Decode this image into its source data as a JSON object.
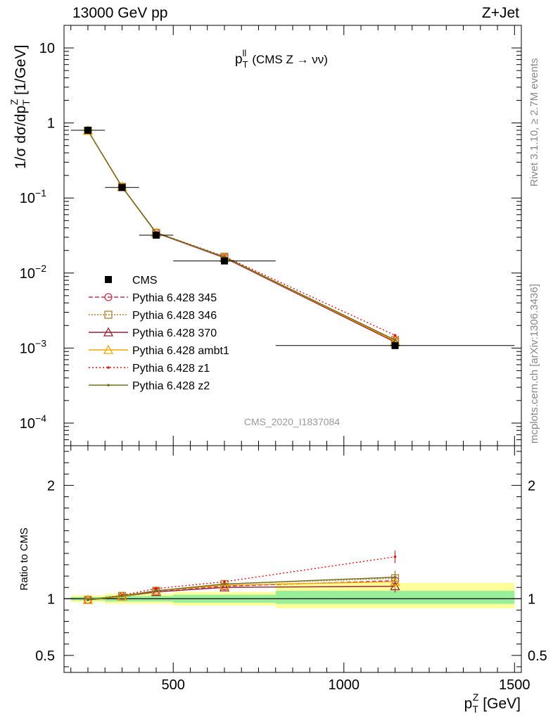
{
  "header": {
    "left": "13000 GeV pp",
    "right": "Z+Jet"
  },
  "side_labels": {
    "top": "Rivet 3.1.10, ≥ 2.7M events",
    "bottom": "mcplots.cern.ch [arXiv:1306.3436]"
  },
  "chart_data": [
    {
      "type": "line",
      "title": "p_T^ll (CMS Z → νν)",
      "title_parts": {
        "main": "p",
        "sub": "T",
        "sup": "ll",
        "rest": "(CMS Z → νν)"
      },
      "ylabel": "1/σ dσ/dp_T^Z [1/GeV]",
      "ylabel_parts": {
        "a": "1/σ dσ/dp",
        "sub": "T",
        "sup": "Z",
        "b": " [1/GeV]"
      },
      "yscale": "log",
      "xlim": [
        180,
        1520
      ],
      "ylim": [
        5e-05,
        20
      ],
      "ytick_labels": [
        {
          "v": 10,
          "base": "10",
          "exp": ""
        },
        {
          "v": 1,
          "base": "1",
          "exp": ""
        },
        {
          "v": 0.1,
          "base": "10",
          "exp": "−1"
        },
        {
          "v": 0.01,
          "base": "10",
          "exp": "−2"
        },
        {
          "v": 0.001,
          "base": "10",
          "exp": "−3"
        },
        {
          "v": 0.0001,
          "base": "10",
          "exp": "−4"
        }
      ],
      "watermark": "CMS_2020_I1837084",
      "legend_position": "center-left",
      "data": {
        "name": "CMS",
        "x": [
          250,
          350,
          450,
          650,
          1150
        ],
        "xerr": [
          [
            200,
            300
          ],
          [
            300,
            400
          ],
          [
            400,
            500
          ],
          [
            500,
            800
          ],
          [
            800,
            1500
          ]
        ],
        "y": [
          0.8,
          0.138,
          0.032,
          0.0145,
          0.00108
        ]
      },
      "series": [
        {
          "name": "Pythia 6.428 345",
          "color": "#c83250",
          "dash": "6,3",
          "marker": "circle-open",
          "x": [
            250,
            350,
            450,
            650,
            1150
          ],
          "y": [
            0.79,
            0.141,
            0.0345,
            0.0162,
            0.00125
          ]
        },
        {
          "name": "Pythia 6.428 346",
          "color": "#b08030",
          "dash": "2,2",
          "marker": "square-open",
          "x": [
            250,
            350,
            450,
            650,
            1150
          ],
          "y": [
            0.79,
            0.141,
            0.0343,
            0.0165,
            0.00128
          ]
        },
        {
          "name": "Pythia 6.428 370",
          "color": "#9a1f38",
          "dash": "",
          "marker": "triangle-open",
          "x": [
            250,
            350,
            450,
            650,
            1150
          ],
          "y": [
            0.79,
            0.14,
            0.0342,
            0.016,
            0.0012
          ]
        },
        {
          "name": "Pythia 6.428 ambt1",
          "color": "#f0a800",
          "dash": "",
          "marker": "triangle-open",
          "x": [
            250,
            350,
            450,
            650,
            1150
          ],
          "y": [
            0.79,
            0.141,
            0.0345,
            0.0163,
            0.00124
          ]
        },
        {
          "name": "Pythia 6.428 z1",
          "color": "#e01010",
          "dash": "2,3",
          "marker": "dot",
          "x": [
            250,
            350,
            450,
            650,
            1150
          ],
          "y": [
            0.79,
            0.141,
            0.0348,
            0.0166,
            0.00148
          ]
        },
        {
          "name": "Pythia 6.428 z2",
          "color": "#707020",
          "dash": "",
          "marker": "dot",
          "x": [
            250,
            350,
            450,
            650,
            1150
          ],
          "y": [
            0.79,
            0.141,
            0.0345,
            0.0163,
            0.00128
          ]
        }
      ]
    },
    {
      "type": "line",
      "ylabel": "Ratio to CMS",
      "xlabel": "p_T^Z [GeV]",
      "xlabel_parts": {
        "main": "p",
        "sub": "T",
        "sup": "Z",
        "rest": " [GeV]"
      },
      "xlim": [
        180,
        1520
      ],
      "ylim": [
        0.35,
        2.35
      ],
      "xticks": [
        500,
        1000,
        1500
      ],
      "xtick_labels": [
        "500",
        "1000",
        "1500"
      ],
      "yticks": [
        0.5,
        1,
        2
      ],
      "ytick_labels": [
        "0.5",
        "1",
        "2"
      ],
      "bands": [
        {
          "x": [
            200,
            300
          ],
          "inner": [
            0.985,
            1.015
          ],
          "outer": [
            0.97,
            1.03
          ]
        },
        {
          "x": [
            300,
            400
          ],
          "inner": [
            0.975,
            1.025
          ],
          "outer": [
            0.955,
            1.045
          ]
        },
        {
          "x": [
            400,
            500
          ],
          "inner": [
            0.975,
            1.025
          ],
          "outer": [
            0.955,
            1.045
          ]
        },
        {
          "x": [
            500,
            800
          ],
          "inner": [
            0.965,
            1.035
          ],
          "outer": [
            0.94,
            1.06
          ]
        },
        {
          "x": [
            800,
            1500
          ],
          "inner": [
            0.955,
            1.07
          ],
          "outer": [
            0.915,
            1.14
          ]
        }
      ],
      "series": [
        {
          "name": "Pythia 6.428 345",
          "x": [
            250,
            350,
            450,
            650,
            1150
          ],
          "y": [
            0.99,
            1.02,
            1.07,
            1.11,
            1.16
          ]
        },
        {
          "name": "Pythia 6.428 346",
          "x": [
            250,
            350,
            450,
            650,
            1150
          ],
          "y": [
            0.99,
            1.025,
            1.07,
            1.13,
            1.18
          ]
        },
        {
          "name": "Pythia 6.428 370",
          "x": [
            250,
            350,
            450,
            650,
            1150
          ],
          "y": [
            0.99,
            1.02,
            1.06,
            1.1,
            1.11
          ]
        },
        {
          "name": "Pythia 6.428 ambt1",
          "x": [
            250,
            350,
            450,
            650,
            1150
          ],
          "y": [
            0.99,
            1.02,
            1.07,
            1.12,
            1.15
          ]
        },
        {
          "name": "Pythia 6.428 z1",
          "x": [
            250,
            350,
            450,
            650,
            1150
          ],
          "y": [
            0.99,
            1.03,
            1.09,
            1.15,
            1.37
          ]
        },
        {
          "name": "Pythia 6.428 z2",
          "x": [
            250,
            350,
            450,
            650,
            1150
          ],
          "y": [
            0.99,
            1.025,
            1.07,
            1.13,
            1.19
          ]
        }
      ]
    }
  ]
}
